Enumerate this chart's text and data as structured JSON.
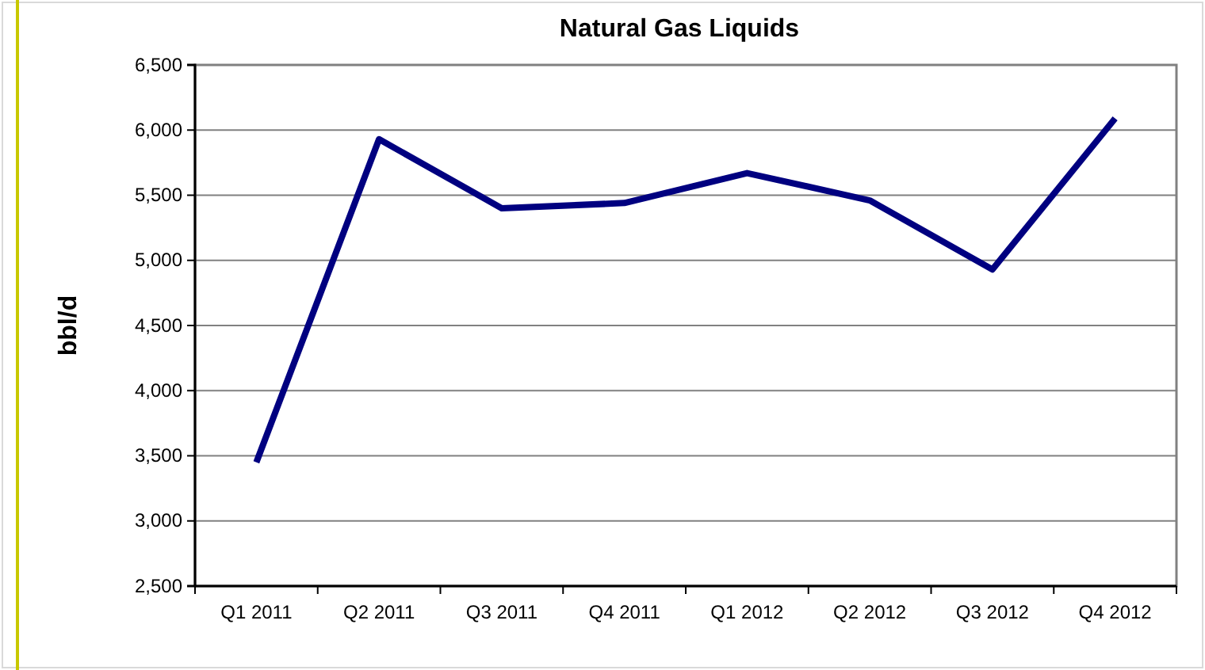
{
  "chart_data": {
    "type": "line",
    "title": "Natural Gas Liquids",
    "ylabel": "bbl/d",
    "categories": [
      "Q1 2011",
      "Q2 2011",
      "Q3 2011",
      "Q4 2011",
      "Q1 2012",
      "Q2 2012",
      "Q3 2012",
      "Q4 2012"
    ],
    "series": [
      {
        "color": "#000080",
        "values": [
          3450,
          5930,
          5400,
          5440,
          5670,
          5460,
          4930,
          6090
        ]
      }
    ],
    "ylim": [
      2500,
      6500
    ],
    "yticks": [
      {
        "value": 2500,
        "label": "2,500"
      },
      {
        "value": 3000,
        "label": "3,000"
      },
      {
        "value": 3500,
        "label": "3,500"
      },
      {
        "value": 4000,
        "label": "4,000"
      },
      {
        "value": 4500,
        "label": "4,500"
      },
      {
        "value": 5000,
        "label": "5,000"
      },
      {
        "value": 5500,
        "label": "5,500"
      },
      {
        "value": 6000,
        "label": "6,000"
      },
      {
        "value": 6500,
        "label": "6,500"
      }
    ],
    "grid": "y",
    "marker": "none",
    "line_style": "solid"
  }
}
